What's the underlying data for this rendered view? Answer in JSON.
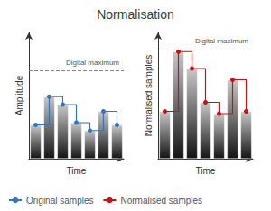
{
  "chart_data": [
    {
      "type": "bar",
      "title": "Normalisation",
      "xlabel": "Time",
      "ylabel": "Amplitude",
      "categories": [
        null,
        null,
        null,
        null,
        null,
        null,
        null
      ],
      "ylim": [
        0,
        1.12
      ],
      "tick_labels": false,
      "grid": false,
      "legend": "lower left",
      "annotations": [
        {
          "text": "Digital maximum",
          "y": 0.78
        }
      ],
      "series": [
        {
          "type": "bar",
          "values": [
            0.3,
            0.55,
            0.48,
            0.32,
            0.25,
            0.42,
            0.3
          ]
        },
        {
          "type": "line",
          "name": "Original samples",
          "color": "#3575c0",
          "marker": "circle",
          "line_style": "step",
          "values": [
            0.3,
            0.55,
            0.48,
            0.32,
            0.25,
            0.42,
            0.3
          ]
        }
      ]
    },
    {
      "type": "bar",
      "xlabel": "Time",
      "ylabel": "Normalised samples",
      "categories": [
        null,
        null,
        null,
        null,
        null,
        null,
        null
      ],
      "ylim": [
        0,
        1.12
      ],
      "tick_labels": false,
      "grid": false,
      "legend": "lower left",
      "annotations": [
        {
          "text": "Digital maximum",
          "y": 0.97
        }
      ],
      "series": [
        {
          "type": "bar",
          "values": [
            0.42,
            0.95,
            0.8,
            0.5,
            0.4,
            0.7,
            0.42
          ]
        },
        {
          "type": "line",
          "name": "Normalised samples",
          "color": "#cc1111",
          "marker": "circle",
          "line_style": "step",
          "values": [
            0.42,
            0.95,
            0.8,
            0.5,
            0.4,
            0.7,
            0.42
          ]
        }
      ]
    }
  ]
}
